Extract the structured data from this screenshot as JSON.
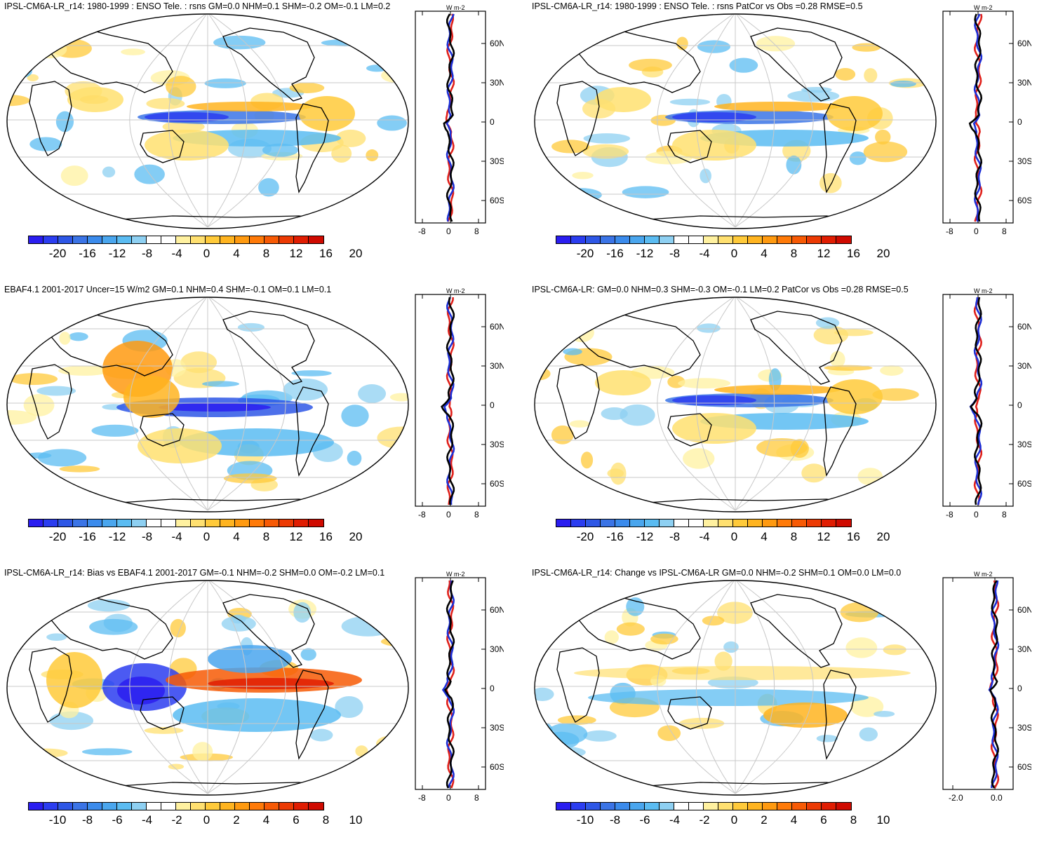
{
  "panels": [
    {
      "title": "IPSL-CM6A-LR_r14: 1980-1999 : ENSO Tele. : rsns GM=0.0 NHM=0.1 SHM=-0.2 OM=-0.1 LM=0.2",
      "colorbar_labels": [
        "-20",
        "-16",
        "-12",
        "-8",
        "-4",
        "0",
        "4",
        "8",
        "12",
        "16",
        "20"
      ],
      "zonal_ticks": [
        "-8",
        "0",
        "8"
      ],
      "lat_labels": [
        "60N",
        "30N",
        "0",
        "30S",
        "60S"
      ],
      "unit": "W m-2"
    },
    {
      "title": "IPSL-CM6A-LR_r14: 1980-1999 : ENSO Tele. : rsns PatCor vs Obs =0.28 RMSE=0.5",
      "colorbar_labels": [
        "-20",
        "-16",
        "-12",
        "-8",
        "-4",
        "0",
        "4",
        "8",
        "12",
        "16",
        "20"
      ],
      "zonal_ticks": [
        "-8",
        "0",
        "8"
      ],
      "lat_labels": [
        "60N",
        "30N",
        "0",
        "30S",
        "60S"
      ],
      "unit": "W m-2"
    },
    {
      "title": "EBAF4.1 2001-2017 Uncer=15 W/m2 GM=0.1 NHM=0.4 SHM=-0.1 OM=0.1 LM=0.1",
      "colorbar_labels": [
        "-20",
        "-16",
        "-12",
        "-8",
        "-4",
        "0",
        "4",
        "8",
        "12",
        "16",
        "20"
      ],
      "zonal_ticks": [
        "-8",
        "0",
        "8"
      ],
      "lat_labels": [
        "60N",
        "30N",
        "0",
        "30S",
        "60S"
      ],
      "unit": "W m-2"
    },
    {
      "title": "IPSL-CM6A-LR: GM=0.0 NHM=0.3 SHM=-0.3 OM=-0.1 LM=0.2 PatCor vs Obs =0.28 RMSE=0.5",
      "colorbar_labels": [
        "-20",
        "-16",
        "-12",
        "-8",
        "-4",
        "0",
        "4",
        "8",
        "12",
        "16",
        "20"
      ],
      "zonal_ticks": [
        "-8",
        "0",
        "8"
      ],
      "lat_labels": [
        "60N",
        "30N",
        "0",
        "30S",
        "60S"
      ],
      "unit": "W m-2"
    },
    {
      "title": "IPSL-CM6A-LR_r14: Bias vs EBAF4.1 2001-2017 GM=-0.1 NHM=-0.2 SHM=0.0 OM=-0.2 LM=0.1",
      "colorbar_labels": [
        "-10",
        "-8",
        "-6",
        "-4",
        "-2",
        "0",
        "2",
        "4",
        "6",
        "8",
        "10"
      ],
      "zonal_ticks": [
        "-8",
        "0",
        "8"
      ],
      "lat_labels": [
        "60N",
        "30N",
        "0",
        "30S",
        "60S"
      ],
      "unit": "W m-2"
    },
    {
      "title": "IPSL-CM6A-LR_r14: Change vs IPSL-CM6A-LR GM=0.0 NHM=-0.2 SHM=0.1 OM=0.0 LM=0.0",
      "colorbar_labels": [
        "-10",
        "-8",
        "-6",
        "-4",
        "-2",
        "0",
        "2",
        "4",
        "6",
        "8",
        "10"
      ],
      "zonal_ticks": [
        "-2.0",
        "0.0"
      ],
      "lat_labels": [
        "60N",
        "30N",
        "0",
        "30S",
        "60S"
      ],
      "unit": "W m-2"
    }
  ],
  "colors": {
    "palette": [
      "#2a1df0",
      "#2b3df0",
      "#2e57e6",
      "#3b74e6",
      "#3b8bec",
      "#4aa6ee",
      "#5bbcf2",
      "#8ed0f2",
      "#ffffff",
      "#ffffff",
      "#fff1a0",
      "#ffe070",
      "#ffca3a",
      "#ffb420",
      "#ff9a10",
      "#ff7a08",
      "#f75a05",
      "#ec3a04",
      "#e01d02",
      "#cf0a00"
    ],
    "land_line": "#000000",
    "grid": "#c8c8c8",
    "series": [
      "#e0201a",
      "#1c2fd6",
      "#000000"
    ]
  }
}
